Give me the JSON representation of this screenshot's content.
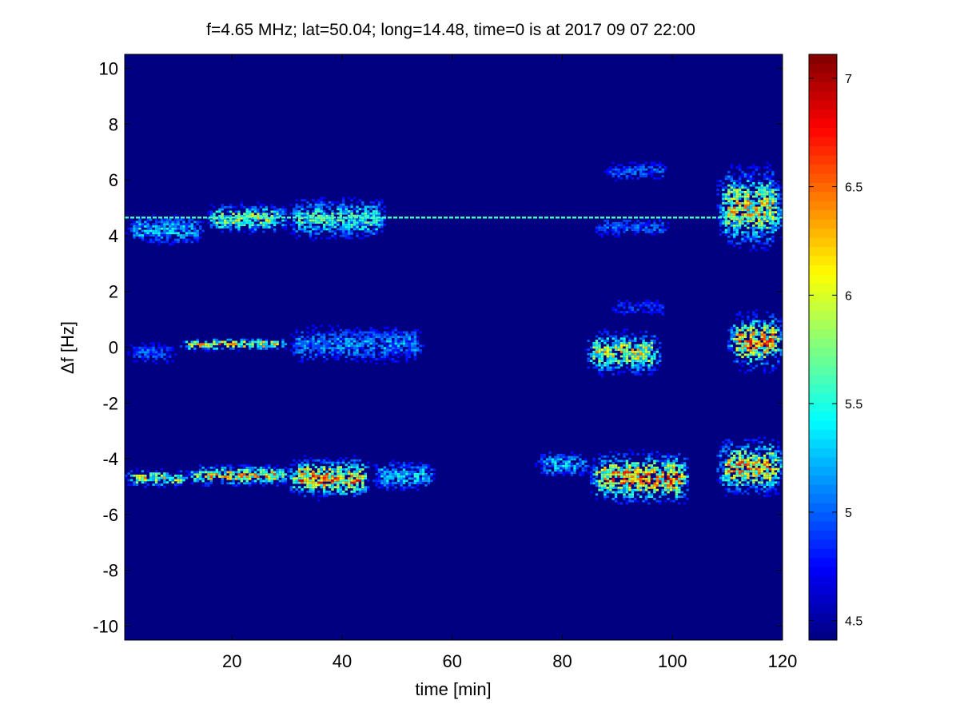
{
  "chart_data": {
    "type": "heatmap",
    "title": "f=4.65 MHz;  lat=50.04; long=14.48, time=0 is at 2017 09 07 22:00",
    "xlabel": "time [min]",
    "ylabel": "Δf [Hz]",
    "xlim": [
      0.5,
      120
    ],
    "ylim": [
      -10.5,
      10.5
    ],
    "xticks": [
      "20",
      "40",
      "60",
      "80",
      "100",
      "120"
    ],
    "xtick_values": [
      20,
      40,
      60,
      80,
      100,
      120
    ],
    "yticks": [
      "10",
      "8",
      "6",
      "4",
      "2",
      "0",
      "-2",
      "-4",
      "-6",
      "-8",
      "-10"
    ],
    "ytick_values": [
      10,
      8,
      6,
      4,
      2,
      0,
      -2,
      -4,
      -6,
      -8,
      -10
    ],
    "colormap": "jet",
    "clim": [
      4.41,
      7.11
    ],
    "colorbar_ticks": [
      "7",
      "6.5",
      "6",
      "5.5",
      "5",
      "4.5"
    ],
    "colorbar_tick_values": [
      7,
      6.5,
      6,
      5.5,
      5,
      4.5
    ],
    "background_value": 4.41,
    "carrier_line": {
      "freq": 4.65,
      "value": 5.6
    },
    "regions": [
      {
        "t": [
          0.5,
          15
        ],
        "f": 4.2,
        "spread": 0.35,
        "peak": 5.6
      },
      {
        "t": [
          15,
          30
        ],
        "f": 4.6,
        "spread": 0.3,
        "peak": 6.3
      },
      {
        "t": [
          30,
          48
        ],
        "f": 4.6,
        "spread": 0.45,
        "peak": 5.9
      },
      {
        "t": [
          85,
          100
        ],
        "f": 4.3,
        "spread": 0.25,
        "peak": 5.2
      },
      {
        "t": [
          87,
          100
        ],
        "f": 6.3,
        "spread": 0.25,
        "peak": 5.2
      },
      {
        "t": [
          108,
          120
        ],
        "f": 5.0,
        "spread": 0.8,
        "peak": 6.6
      },
      {
        "t": [
          0.5,
          10
        ],
        "f": -0.2,
        "spread": 0.3,
        "peak": 5.2
      },
      {
        "t": [
          10,
          30
        ],
        "f": 0.1,
        "spread": 0.12,
        "peak": 6.8
      },
      {
        "t": [
          30,
          55
        ],
        "f": 0.1,
        "spread": 0.45,
        "peak": 5.4
      },
      {
        "t": [
          84,
          98
        ],
        "f": -0.2,
        "spread": 0.45,
        "peak": 6.5
      },
      {
        "t": [
          88,
          100
        ],
        "f": 1.4,
        "spread": 0.3,
        "peak": 5.0
      },
      {
        "t": [
          110,
          120
        ],
        "f": 0.2,
        "spread": 0.55,
        "peak": 7.0
      },
      {
        "t": [
          0.5,
          12
        ],
        "f": -4.7,
        "spread": 0.18,
        "peak": 6.5
      },
      {
        "t": [
          12,
          30
        ],
        "f": -4.6,
        "spread": 0.2,
        "peak": 6.8
      },
      {
        "t": [
          30,
          45
        ],
        "f": -4.7,
        "spread": 0.4,
        "peak": 7.0
      },
      {
        "t": [
          45,
          57
        ],
        "f": -4.6,
        "spread": 0.35,
        "peak": 5.6
      },
      {
        "t": [
          75,
          85
        ],
        "f": -4.2,
        "spread": 0.3,
        "peak": 5.6
      },
      {
        "t": [
          85,
          103
        ],
        "f": -4.7,
        "spread": 0.5,
        "peak": 7.0
      },
      {
        "t": [
          108,
          120
        ],
        "f": -4.3,
        "spread": 0.55,
        "peak": 6.8
      }
    ]
  }
}
